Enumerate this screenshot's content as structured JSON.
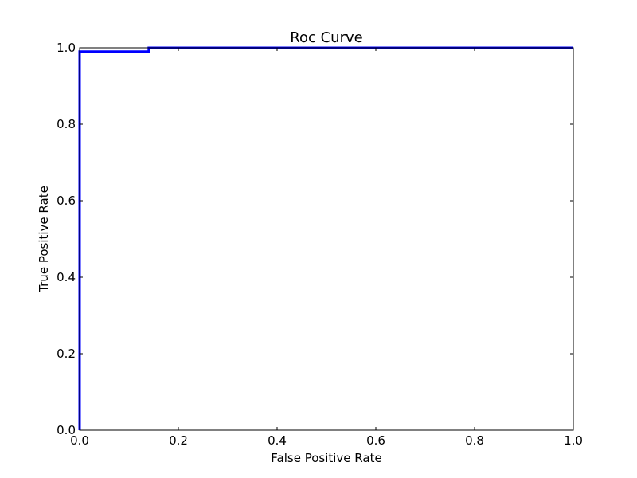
{
  "chart_data": {
    "type": "line",
    "title": "Roc Curve",
    "xlabel": "False Positive Rate",
    "ylabel": "True Positive Rate",
    "xlim": [
      0.0,
      1.0
    ],
    "ylim": [
      0.0,
      1.0
    ],
    "x_ticks": [
      "0.0",
      "0.2",
      "0.4",
      "0.6",
      "0.8",
      "1.0"
    ],
    "y_ticks": [
      "0.0",
      "0.2",
      "0.4",
      "0.6",
      "0.8",
      "1.0"
    ],
    "grid": false,
    "series": [
      {
        "color": "#0000ff",
        "x": [
          0.0,
          0.0,
          0.0,
          0.14,
          0.14,
          1.0
        ],
        "y": [
          0.0,
          0.99,
          0.99,
          0.99,
          1.0,
          1.0
        ]
      }
    ]
  }
}
